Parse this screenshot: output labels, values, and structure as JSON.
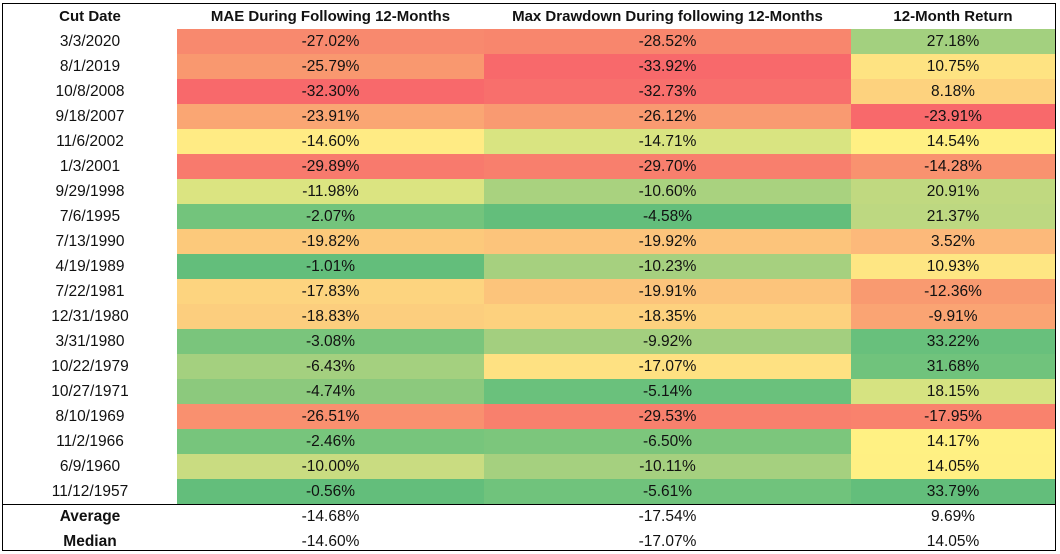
{
  "headers": [
    "Cut Date",
    "MAE During Following 12-Months",
    "Max Drawdown During following 12-Months",
    "12-Month Return"
  ],
  "rows": [
    {
      "date": "3/3/2020",
      "mae": "-27.02%",
      "mdd": "-28.52%",
      "ret": "27.18%",
      "colors": [
        "#f8896e",
        "#f8866d",
        "#a3d07f"
      ]
    },
    {
      "date": "8/1/2019",
      "mae": "-25.79%",
      "mdd": "-33.92%",
      "ret": "10.75%",
      "colors": [
        "#f9986f",
        "#f8696b",
        "#fee382"
      ]
    },
    {
      "date": "10/8/2008",
      "mae": "-32.30%",
      "mdd": "-32.73%",
      "ret": "8.18%",
      "colors": [
        "#f8696b",
        "#f86f6c",
        "#fdd27e"
      ]
    },
    {
      "date": "9/18/2007",
      "mae": "-23.91%",
      "mdd": "-26.12%",
      "ret": "-23.91%",
      "colors": [
        "#faa673",
        "#f99a71",
        "#f8696b"
      ]
    },
    {
      "date": "11/6/2002",
      "mae": "-14.60%",
      "mdd": "-14.71%",
      "ret": "14.54%",
      "colors": [
        "#ffeb84",
        "#d9e481",
        "#fff083"
      ]
    },
    {
      "date": "1/3/2001",
      "mae": "-29.89%",
      "mdd": "-29.70%",
      "ret": "-14.28%",
      "colors": [
        "#f87a6d",
        "#f87f6d",
        "#f9926f"
      ]
    },
    {
      "date": "9/29/1998",
      "mae": "-11.98%",
      "mdd": "-10.60%",
      "ret": "20.91%",
      "colors": [
        "#dbe481",
        "#a9d27f",
        "#c0d980"
      ]
    },
    {
      "date": "7/6/1995",
      "mae": "-2.07%",
      "mdd": "-4.58%",
      "ret": "21.37%",
      "colors": [
        "#73c47c",
        "#63be7b",
        "#bdd881"
      ]
    },
    {
      "date": "7/13/1990",
      "mae": "-19.82%",
      "mdd": "-19.92%",
      "ret": "3.52%",
      "colors": [
        "#fcc97b",
        "#fcc47b",
        "#fcb97a"
      ]
    },
    {
      "date": "4/19/1989",
      "mae": "-1.01%",
      "mdd": "-10.23%",
      "ret": "10.93%",
      "colors": [
        "#63be7b",
        "#a6d07f",
        "#fee683"
      ]
    },
    {
      "date": "7/22/1981",
      "mae": "-17.83%",
      "mdd": "-19.91%",
      "ret": "-12.36%",
      "colors": [
        "#fdd47f",
        "#fcc47b",
        "#f99a70"
      ]
    },
    {
      "date": "12/31/1980",
      "mae": "-18.83%",
      "mdd": "-18.35%",
      "ret": "-9.91%",
      "colors": [
        "#fcce7e",
        "#fdd17e",
        "#faa473"
      ]
    },
    {
      "date": "3/31/1980",
      "mae": "-3.08%",
      "mdd": "-9.92%",
      "ret": "33.22%",
      "colors": [
        "#7ac57c",
        "#a3cf7f",
        "#68c07c"
      ]
    },
    {
      "date": "10/22/1979",
      "mae": "-6.43%",
      "mdd": "-17.07%",
      "ret": "31.68%",
      "colors": [
        "#a4d07f",
        "#fee182",
        "#70c37c"
      ]
    },
    {
      "date": "10/27/1971",
      "mae": "-4.74%",
      "mdd": "-5.14%",
      "ret": "18.15%",
      "colors": [
        "#8cc97d",
        "#6ac17c",
        "#d6e381"
      ]
    },
    {
      "date": "8/10/1969",
      "mae": "-26.51%",
      "mdd": "-29.53%",
      "ret": "-17.95%",
      "colors": [
        "#f9906f",
        "#f8806d",
        "#f9826d"
      ]
    },
    {
      "date": "11/2/1966",
      "mae": "-2.46%",
      "mdd": "-6.50%",
      "ret": "14.17%",
      "colors": [
        "#77c57c",
        "#7cc67c",
        "#fff183"
      ]
    },
    {
      "date": "6/9/1960",
      "mae": "-10.00%",
      "mdd": "-10.11%",
      "ret": "14.05%",
      "colors": [
        "#c9dc81",
        "#a5d07f",
        "#fff083"
      ]
    },
    {
      "date": "11/12/1957",
      "mae": "-0.56%",
      "mdd": "-5.61%",
      "ret": "33.79%",
      "colors": [
        "#63be7b",
        "#70c37c",
        "#63be7b"
      ]
    }
  ],
  "summary": [
    {
      "label": "Average",
      "mae": "-14.68%",
      "mdd": "-17.54%",
      "ret": "9.69%"
    },
    {
      "label": "Median",
      "mae": "-14.60%",
      "mdd": "-17.07%",
      "ret": "14.05%"
    }
  ]
}
